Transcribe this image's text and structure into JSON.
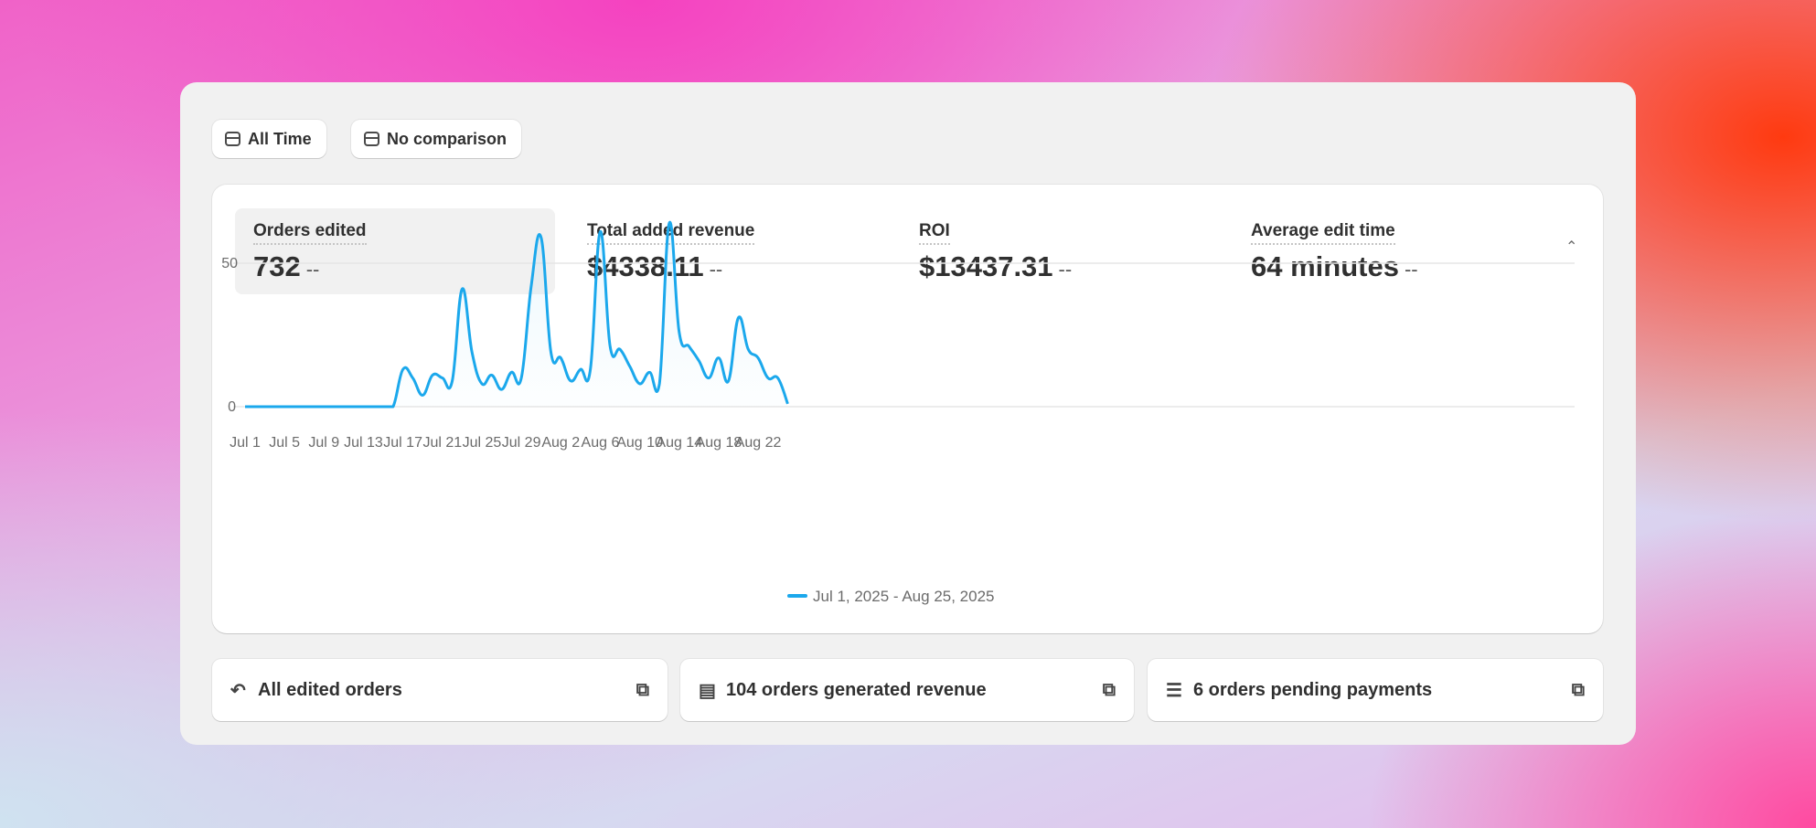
{
  "filters": {
    "date_range": "All Time",
    "comparison": "No comparison"
  },
  "metrics": [
    {
      "label": "Orders edited",
      "value": "732",
      "delta": "--",
      "active": true
    },
    {
      "label": "Total added revenue",
      "value": "$4338.11",
      "delta": "--"
    },
    {
      "label": "ROI",
      "value": "$13437.31",
      "delta": "--"
    },
    {
      "label": "Average edit time",
      "value": "64 minutes",
      "delta": "--"
    }
  ],
  "collapse_icon": "chevron-up-icon",
  "chart_data": {
    "type": "line",
    "x": [
      "Jul 1",
      "Jul 2",
      "Jul 3",
      "Jul 4",
      "Jul 5",
      "Jul 6",
      "Jul 7",
      "Jul 8",
      "Jul 9",
      "Jul 10",
      "Jul 11",
      "Jul 12",
      "Jul 13",
      "Jul 14",
      "Jul 15",
      "Jul 16",
      "Jul 17",
      "Jul 18",
      "Jul 19",
      "Jul 20",
      "Jul 21",
      "Jul 22",
      "Jul 23",
      "Jul 24",
      "Jul 25",
      "Jul 26",
      "Jul 27",
      "Jul 28",
      "Jul 29",
      "Jul 30",
      "Jul 31",
      "Aug 1",
      "Aug 2",
      "Aug 3",
      "Aug 4",
      "Aug 5",
      "Aug 6",
      "Aug 7",
      "Aug 8",
      "Aug 9",
      "Aug 10",
      "Aug 11",
      "Aug 12",
      "Aug 13",
      "Aug 14",
      "Aug 15",
      "Aug 16",
      "Aug 17",
      "Aug 18",
      "Aug 19",
      "Aug 20",
      "Aug 21",
      "Aug 22",
      "Aug 23",
      "Aug 24",
      "Aug 25"
    ],
    "series": [
      {
        "name": "Jul 1, 2025 - Aug 25, 2025",
        "color": "#1ba8ec",
        "values": [
          0,
          0,
          0,
          0,
          0,
          0,
          0,
          0,
          0,
          0,
          0,
          0,
          0,
          0,
          0,
          0,
          13,
          10,
          4,
          11,
          10,
          9,
          41,
          19,
          8,
          11,
          6,
          12,
          10,
          42,
          59,
          19,
          17,
          9,
          13,
          13,
          61,
          21,
          20,
          14,
          8,
          12,
          8,
          64,
          26,
          21,
          16,
          10,
          17,
          9,
          31,
          20,
          17,
          10,
          10,
          1
        ]
      }
    ],
    "x_tick_labels": [
      "Jul 1",
      "Jul 5",
      "Jul 9",
      "Jul 13",
      "Jul 17",
      "Jul 21",
      "Jul 25",
      "Jul 29",
      "Aug 2",
      "Aug 6",
      "Aug 10",
      "Aug 14",
      "Aug 18",
      "Aug 22"
    ],
    "y_ticks": [
      "0",
      "50"
    ],
    "ylim": [
      0,
      64
    ],
    "grid": true,
    "legend": "bottom"
  },
  "links": [
    {
      "label": "All edited orders",
      "icon": "undo-icon"
    },
    {
      "label": "104 orders generated revenue",
      "icon": "inbox-icon"
    },
    {
      "label": "6 orders pending payments",
      "icon": "cash-hand-icon"
    }
  ]
}
